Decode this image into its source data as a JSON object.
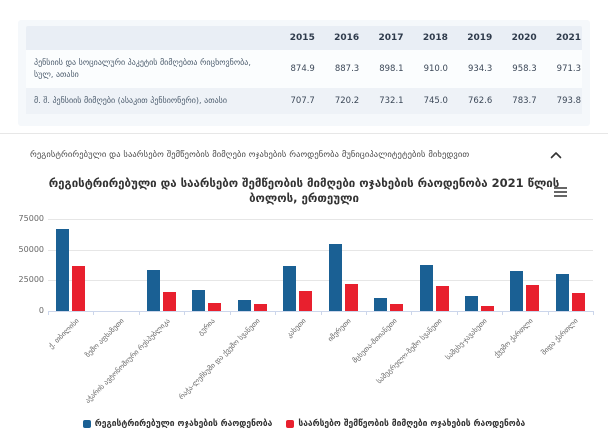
{
  "table": {
    "years": [
      "2015",
      "2016",
      "2017",
      "2018",
      "2019",
      "2020",
      "2021"
    ],
    "rows": [
      {
        "label": "პენსიის და სოციალური პაკეტის მიმღებთა რიცხოვნობა, სულ, ათასი",
        "values": [
          "874.9",
          "887.3",
          "898.1",
          "910.0",
          "934.3",
          "958.3",
          "971.3"
        ]
      },
      {
        "label": "მ. შ. პენსიის მიმღები (ასაკით პენსიონერი), ათასი",
        "values": [
          "707.7",
          "720.2",
          "732.1",
          "745.0",
          "762.6",
          "783.7",
          "793.8"
        ]
      }
    ]
  },
  "accordion": {
    "title": "რეგისტრირებული და საარსებო შემწეობის მიმღები ოჯახების რაოდენობა მუნიციპალიტეტების მიხედვით",
    "state": "expanded",
    "chevron_icon": "chevron-up"
  },
  "chart_menu_icon": "hamburger-menu",
  "chart_data": {
    "type": "bar",
    "title": "რეგისტრირებული და საარსებო შემწეობის მიმღები ოჯახების რაოდენობა 2021 წლის ბოლოს, ერთეული",
    "categories": [
      "ქ. თბილისი",
      "ზემო აფხაზეთი",
      "აჭარის ავტონომიური რესპუბლიკა",
      "გურია",
      "რაჭა-ლეჩხუმი და ქვემო სვანეთი",
      "კახეთი",
      "იმერეთი",
      "მცხეთა-მთიანეთი",
      "სამეგრელო-ზემო სვანეთი",
      "სამცხე-ჯავახეთი",
      "ქვემო ქართლი",
      "შიდა ქართლი"
    ],
    "series": [
      {
        "name": "რეგისტრირებული ოჯახების რაოდენობა",
        "color": "#1a6094",
        "values": [
          66500,
          0,
          33800,
          16800,
          9000,
          36500,
          54800,
          10400,
          37500,
          12500,
          32500,
          30300
        ]
      },
      {
        "name": "საარსებო შემწეობის მიმღები ოჯახების რაოდენობა",
        "color": "#e8202e",
        "values": [
          36500,
          0,
          15200,
          6400,
          5800,
          16700,
          22000,
          5300,
          20500,
          4100,
          21000,
          14800
        ]
      }
    ],
    "xlabel": "",
    "ylabel": "",
    "ylim": [
      0,
      75000
    ],
    "yticks": [
      0,
      25000,
      50000,
      75000
    ],
    "grid": true,
    "legend_position": "bottom"
  }
}
